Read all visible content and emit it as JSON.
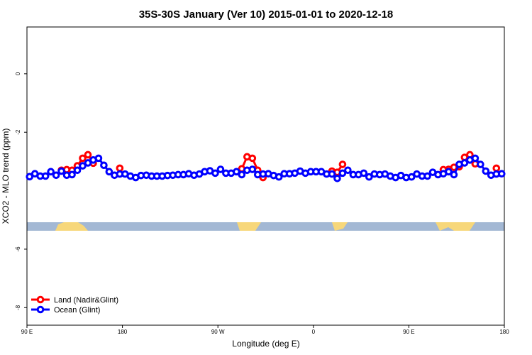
{
  "chart_data": {
    "type": "line",
    "title": "35S-30S January (Ver 10)   2015-01-01 to 2020-12-18",
    "x_label": "Longitude (deg E)",
    "y_label": "XCO2 - MLO trend (ppm)",
    "xlim": [
      90,
      540
    ],
    "ylim": [
      -8.6,
      1.6
    ],
    "xticks": [
      {
        "value": 90,
        "label": "90 E"
      },
      180,
      {
        "value": 270,
        "label": "90 W"
      },
      {
        "value": 360,
        "label": "0"
      },
      {
        "value": 450,
        "label": "90 E"
      },
      {
        "value": 540,
        "label": "180"
      }
    ],
    "yticks": [
      0,
      -2,
      -6,
      -8
    ],
    "legend": "bottom-left",
    "x": [
      92.5,
      97.5,
      102.5,
      107.5,
      112.5,
      117.5,
      122.5,
      127.5,
      132.5,
      137.5,
      142.5,
      147.5,
      152.5,
      157.5,
      162.5,
      167.5,
      172.5,
      177.5,
      182.5,
      187.5,
      192.5,
      197.5,
      202.5,
      207.5,
      212.5,
      217.5,
      222.5,
      227.5,
      232.5,
      237.5,
      242.5,
      247.5,
      252.5,
      257.5,
      262.5,
      267.5,
      272.5,
      277.5,
      282.5,
      287.5,
      292.5,
      297.5,
      302.5,
      307.5,
      312.5,
      317.5,
      322.5,
      327.5,
      332.5,
      337.5,
      342.5,
      347.5,
      352.5,
      357.5,
      362.5,
      367.5,
      372.5,
      377.5,
      382.5,
      387.5,
      392.5,
      397.5,
      402.5,
      407.5,
      412.5,
      417.5,
      422.5,
      427.5,
      432.5,
      437.5,
      442.5,
      447.5,
      452.5,
      457.5,
      462.5,
      467.5,
      472.5,
      477.5,
      482.5,
      487.5,
      492.5,
      497.5,
      502.5,
      507.5,
      512.5,
      517.5,
      522.5,
      527.5,
      532.5,
      537.5
    ],
    "series": [
      {
        "name": "Land (Nadir&Glint)",
        "color": "#ff0000",
        "values": [
          null,
          null,
          null,
          null,
          null,
          null,
          -3.3,
          -3.28,
          -3.3,
          -3.15,
          -2.89,
          -2.77,
          -3.06,
          null,
          null,
          null,
          null,
          -3.23,
          null,
          null,
          null,
          null,
          null,
          null,
          null,
          null,
          null,
          null,
          null,
          null,
          null,
          null,
          null,
          null,
          null,
          null,
          null,
          null,
          null,
          null,
          -3.25,
          -2.84,
          -2.89,
          -3.3,
          -3.55,
          null,
          null,
          null,
          null,
          null,
          null,
          null,
          null,
          null,
          null,
          null,
          null,
          -3.33,
          -3.37,
          -3.1,
          null,
          null,
          null,
          null,
          null,
          null,
          null,
          null,
          null,
          null,
          null,
          null,
          null,
          null,
          null,
          null,
          null,
          null,
          -3.28,
          -3.27,
          -3.2,
          -3.18,
          -2.86,
          -2.77,
          -3.08,
          null,
          null,
          null,
          -3.23,
          null
        ]
      },
      {
        "name": "Ocean (Glint)",
        "color": "#0000ff",
        "values": [
          -3.52,
          -3.42,
          -3.5,
          -3.5,
          -3.35,
          -3.47,
          -3.33,
          -3.47,
          -3.45,
          -3.3,
          -3.15,
          -3.05,
          -2.95,
          -2.89,
          -3.13,
          -3.35,
          -3.47,
          -3.43,
          -3.43,
          -3.5,
          -3.55,
          -3.48,
          -3.47,
          -3.5,
          -3.5,
          -3.5,
          -3.48,
          -3.47,
          -3.45,
          -3.45,
          -3.42,
          -3.47,
          -3.43,
          -3.35,
          -3.32,
          -3.4,
          -3.27,
          -3.4,
          -3.4,
          -3.35,
          -3.45,
          -3.3,
          -3.27,
          -3.45,
          -3.43,
          -3.42,
          -3.48,
          -3.53,
          -3.42,
          -3.42,
          -3.4,
          -3.33,
          -3.4,
          -3.35,
          -3.35,
          -3.35,
          -3.43,
          -3.43,
          -3.58,
          -3.4,
          -3.3,
          -3.45,
          -3.45,
          -3.4,
          -3.53,
          -3.43,
          -3.45,
          -3.43,
          -3.5,
          -3.55,
          -3.48,
          -3.55,
          -3.53,
          -3.43,
          -3.5,
          -3.5,
          -3.37,
          -3.45,
          -3.42,
          -3.35,
          -3.45,
          -3.1,
          -3.05,
          -2.95,
          -2.89,
          -3.1,
          -3.33,
          -3.47,
          -3.43,
          -3.42
        ]
      }
    ]
  }
}
